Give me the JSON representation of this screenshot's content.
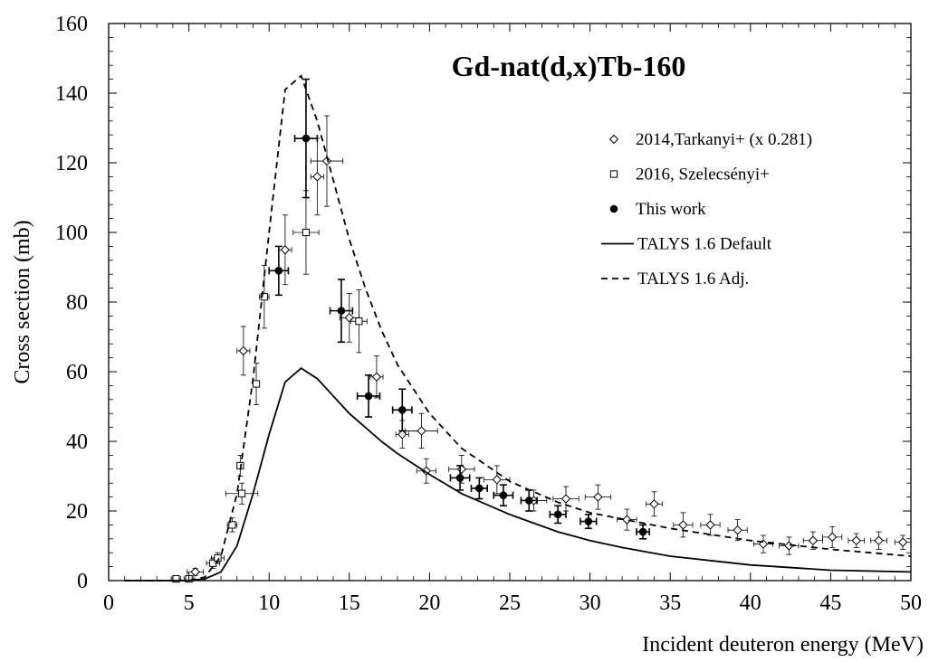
{
  "chart_data": {
    "type": "scatter",
    "title": "Gd-nat(d,x)Tb-160",
    "xlabel": "Incident deuteron energy (MeV)",
    "ylabel": "Cross section (mb)",
    "xlim": [
      0,
      50
    ],
    "ylim": [
      0,
      160
    ],
    "x_ticks": [
      0,
      5,
      10,
      15,
      20,
      25,
      30,
      35,
      40,
      45,
      50
    ],
    "y_ticks": [
      0,
      20,
      40,
      60,
      80,
      100,
      120,
      140,
      160
    ],
    "x_tick_labels": [
      "0",
      "5",
      "10",
      "15",
      "20",
      "25",
      "30",
      "35",
      "40",
      "45",
      "50"
    ],
    "y_tick_labels": [
      "0",
      "20",
      "40",
      "60",
      "80",
      "100",
      "120",
      "140",
      "160"
    ],
    "grid": false,
    "legend_position": "top-right",
    "series": [
      {
        "name": "2014,Tarkanyi+ (x 0.281)",
        "kind": "points",
        "marker": "diamond-open",
        "points": [
          {
            "x": 5.4,
            "y": 2.5,
            "xerr": 0.5,
            "yerr": 1.0
          },
          {
            "x": 8.4,
            "y": 66,
            "xerr": 0.4,
            "yerr": 7
          },
          {
            "x": 11.0,
            "y": 95,
            "xerr": 0.4,
            "yerr": 10
          },
          {
            "x": 13.0,
            "y": 116,
            "xerr": 0.4,
            "yerr": 11
          },
          {
            "x": 13.6,
            "y": 120.5,
            "xerr": 1.0,
            "yerr": 13
          },
          {
            "x": 15.0,
            "y": 75.5,
            "xerr": 0.6,
            "yerr": 7
          },
          {
            "x": 16.7,
            "y": 58.5,
            "xerr": 0.4,
            "yerr": 6
          },
          {
            "x": 18.3,
            "y": 42,
            "xerr": 0.4,
            "yerr": 4
          },
          {
            "x": 19.5,
            "y": 43,
            "xerr": 1.0,
            "yerr": 5
          },
          {
            "x": 19.8,
            "y": 31.5,
            "xerr": 0.6,
            "yerr": 3.5
          },
          {
            "x": 22.0,
            "y": 32,
            "xerr": 0.8,
            "yerr": 4
          },
          {
            "x": 24.2,
            "y": 29,
            "xerr": 0.8,
            "yerr": 4
          },
          {
            "x": 26.5,
            "y": 23,
            "xerr": 0.8,
            "yerr": 3
          },
          {
            "x": 28.5,
            "y": 23.5,
            "xerr": 0.8,
            "yerr": 3.5
          },
          {
            "x": 30.5,
            "y": 24,
            "xerr": 0.8,
            "yerr": 3.5
          },
          {
            "x": 32.3,
            "y": 17.5,
            "xerr": 0.6,
            "yerr": 3
          },
          {
            "x": 34.0,
            "y": 22,
            "xerr": 0.5,
            "yerr": 3.5
          },
          {
            "x": 35.8,
            "y": 16,
            "xerr": 0.6,
            "yerr": 3.5
          },
          {
            "x": 37.5,
            "y": 16,
            "xerr": 0.6,
            "yerr": 3
          },
          {
            "x": 39.2,
            "y": 14.5,
            "xerr": 0.6,
            "yerr": 3
          },
          {
            "x": 40.8,
            "y": 10.5,
            "xerr": 0.6,
            "yerr": 2.5
          },
          {
            "x": 42.4,
            "y": 10,
            "xerr": 0.6,
            "yerr": 2.5
          },
          {
            "x": 43.9,
            "y": 11.5,
            "xerr": 0.6,
            "yerr": 2.5
          },
          {
            "x": 45.1,
            "y": 12.5,
            "xerr": 0.6,
            "yerr": 3
          },
          {
            "x": 46.6,
            "y": 11.5,
            "xerr": 0.5,
            "yerr": 2
          },
          {
            "x": 48.0,
            "y": 11.5,
            "xerr": 0.5,
            "yerr": 2.5
          },
          {
            "x": 49.5,
            "y": 11,
            "xerr": 0.5,
            "yerr": 2
          }
        ]
      },
      {
        "name": "2016, Szelecsényi+",
        "kind": "points",
        "marker": "square-open",
        "points": [
          {
            "x": 4.2,
            "y": 0.5,
            "xerr": 0.3,
            "yerr": 0.3
          },
          {
            "x": 5.0,
            "y": 0.5,
            "xerr": 0.3,
            "yerr": 0.3
          },
          {
            "x": 6.5,
            "y": 5,
            "xerr": 0.4,
            "yerr": 1.5
          },
          {
            "x": 6.8,
            "y": 6.5,
            "xerr": 0.4,
            "yerr": 1.5
          },
          {
            "x": 7.7,
            "y": 16,
            "xerr": 0.3,
            "yerr": 2
          },
          {
            "x": 8.2,
            "y": 33,
            "xerr": 0.2,
            "yerr": 3
          },
          {
            "x": 8.3,
            "y": 25,
            "xerr": 1.0,
            "yerr": 3
          },
          {
            "x": 9.2,
            "y": 56.5,
            "xerr": 0.2,
            "yerr": 6
          },
          {
            "x": 9.7,
            "y": 81.5,
            "xerr": 0.3,
            "yerr": 9
          },
          {
            "x": 12.3,
            "y": 100,
            "xerr": 0.8,
            "yerr": 12
          },
          {
            "x": 15.6,
            "y": 74.5,
            "xerr": 0.5,
            "yerr": 9
          }
        ]
      },
      {
        "name": "This work",
        "kind": "points",
        "marker": "circle-filled",
        "points": [
          {
            "x": 10.6,
            "y": 89,
            "xerr": 0.6,
            "yerr": 7
          },
          {
            "x": 12.3,
            "y": 127,
            "xerr": 0.7,
            "yerr": 17
          },
          {
            "x": 14.5,
            "y": 77.5,
            "xerr": 0.7,
            "yerr": 9
          },
          {
            "x": 16.2,
            "y": 53,
            "xerr": 0.7,
            "yerr": 6
          },
          {
            "x": 18.3,
            "y": 49,
            "xerr": 0.6,
            "yerr": 6
          },
          {
            "x": 21.9,
            "y": 29.5,
            "xerr": 0.6,
            "yerr": 3.5
          },
          {
            "x": 23.1,
            "y": 26.5,
            "xerr": 0.5,
            "yerr": 3
          },
          {
            "x": 24.6,
            "y": 24.5,
            "xerr": 0.6,
            "yerr": 3
          },
          {
            "x": 26.2,
            "y": 23,
            "xerr": 0.5,
            "yerr": 3
          },
          {
            "x": 28.0,
            "y": 19,
            "xerr": 0.5,
            "yerr": 2.5
          },
          {
            "x": 29.9,
            "y": 17,
            "xerr": 0.5,
            "yerr": 2
          },
          {
            "x": 33.3,
            "y": 14,
            "xerr": 0.4,
            "yerr": 2
          }
        ]
      },
      {
        "name": "TALYS 1.6 Default",
        "kind": "line",
        "dash": "solid",
        "points": [
          {
            "x": 1,
            "y": 0
          },
          {
            "x": 5,
            "y": 0
          },
          {
            "x": 6,
            "y": 0.5
          },
          {
            "x": 7,
            "y": 2.5
          },
          {
            "x": 8,
            "y": 10
          },
          {
            "x": 9,
            "y": 25
          },
          {
            "x": 10,
            "y": 42
          },
          {
            "x": 11,
            "y": 57
          },
          {
            "x": 12,
            "y": 61
          },
          {
            "x": 13,
            "y": 58
          },
          {
            "x": 14,
            "y": 53
          },
          {
            "x": 15,
            "y": 48
          },
          {
            "x": 16,
            "y": 44
          },
          {
            "x": 17,
            "y": 40
          },
          {
            "x": 18,
            "y": 36.5
          },
          {
            "x": 20,
            "y": 30.5
          },
          {
            "x": 22,
            "y": 25
          },
          {
            "x": 25,
            "y": 19
          },
          {
            "x": 28,
            "y": 14
          },
          {
            "x": 30,
            "y": 11.5
          },
          {
            "x": 32,
            "y": 9.5
          },
          {
            "x": 35,
            "y": 7
          },
          {
            "x": 38,
            "y": 5.5
          },
          {
            "x": 40,
            "y": 4.5
          },
          {
            "x": 45,
            "y": 3
          },
          {
            "x": 50,
            "y": 2.5
          }
        ]
      },
      {
        "name": "TALYS 1.6 Adj.",
        "kind": "line",
        "dash": "dashed",
        "points": [
          {
            "x": 1,
            "y": 0
          },
          {
            "x": 5,
            "y": 0
          },
          {
            "x": 6,
            "y": 1
          },
          {
            "x": 7,
            "y": 7
          },
          {
            "x": 8,
            "y": 25
          },
          {
            "x": 9,
            "y": 58
          },
          {
            "x": 10,
            "y": 100
          },
          {
            "x": 11,
            "y": 141
          },
          {
            "x": 12,
            "y": 145
          },
          {
            "x": 13,
            "y": 132
          },
          {
            "x": 14,
            "y": 115
          },
          {
            "x": 15,
            "y": 98
          },
          {
            "x": 16,
            "y": 84
          },
          {
            "x": 17,
            "y": 72
          },
          {
            "x": 18,
            "y": 62
          },
          {
            "x": 20,
            "y": 48
          },
          {
            "x": 22,
            "y": 38
          },
          {
            "x": 25,
            "y": 28.5
          },
          {
            "x": 28,
            "y": 22.5
          },
          {
            "x": 30,
            "y": 19.5
          },
          {
            "x": 35,
            "y": 15
          },
          {
            "x": 40,
            "y": 11.5
          },
          {
            "x": 45,
            "y": 9
          },
          {
            "x": 50,
            "y": 7
          }
        ]
      }
    ]
  }
}
